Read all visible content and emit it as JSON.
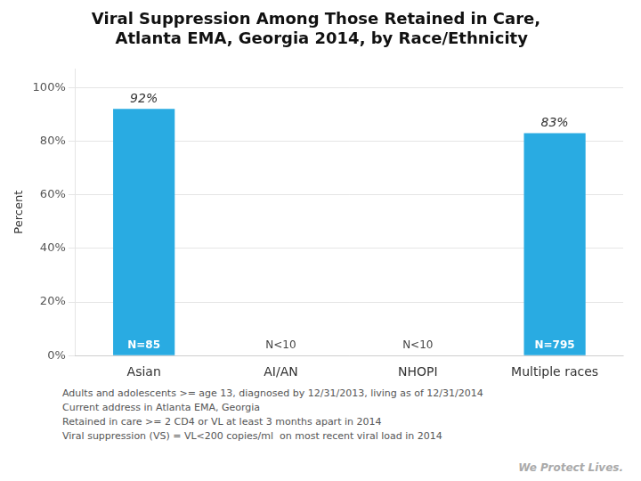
{
  "chart_data": {
    "type": "bar",
    "title": [
      "Viral Suppression Among Those Retained in Care,",
      "  Atlanta EMA, Georgia 2014, by Race/Ethnicity"
    ],
    "categories": [
      "Asian",
      "AI/AN",
      "NHOPI",
      "Multiple races"
    ],
    "values": [
      92,
      0,
      0,
      83
    ],
    "value_labels": [
      "92%",
      null,
      null,
      "83%"
    ],
    "data_labels": true,
    "color": "#29abe2",
    "ylabel": "Percent",
    "ylim": [
      0,
      107
    ],
    "yticks": [
      {
        "value": 0,
        "label": "0%"
      },
      {
        "value": 20,
        "label": "20%"
      },
      {
        "value": 40,
        "label": "40%"
      },
      {
        "value": 60,
        "label": "60%"
      },
      {
        "value": 80,
        "label": "80%"
      },
      {
        "value": 100,
        "label": "100%"
      }
    ],
    "grid": true,
    "annotations": [
      {
        "category": "Asian",
        "text": "N=85"
      },
      {
        "category": "AI/AN",
        "text": "N<10"
      },
      {
        "category": "NHOPI",
        "text": "N<10"
      },
      {
        "category": "Multiple races",
        "text": "N=795"
      }
    ],
    "footnotes": [
      "Adults and adolescents >= age 13, diagnosed by 12/31/2013, living as of 12/31/2014",
      "Current address in Atlanta EMA, Georgia",
      "Retained in care >= 2 CD4 or VL at least 3 months apart in 2014",
      "Viral suppression (VS) = VL<200 copies/ml  on most recent viral load in 2014"
    ],
    "watermark": "We Protect Lives."
  }
}
